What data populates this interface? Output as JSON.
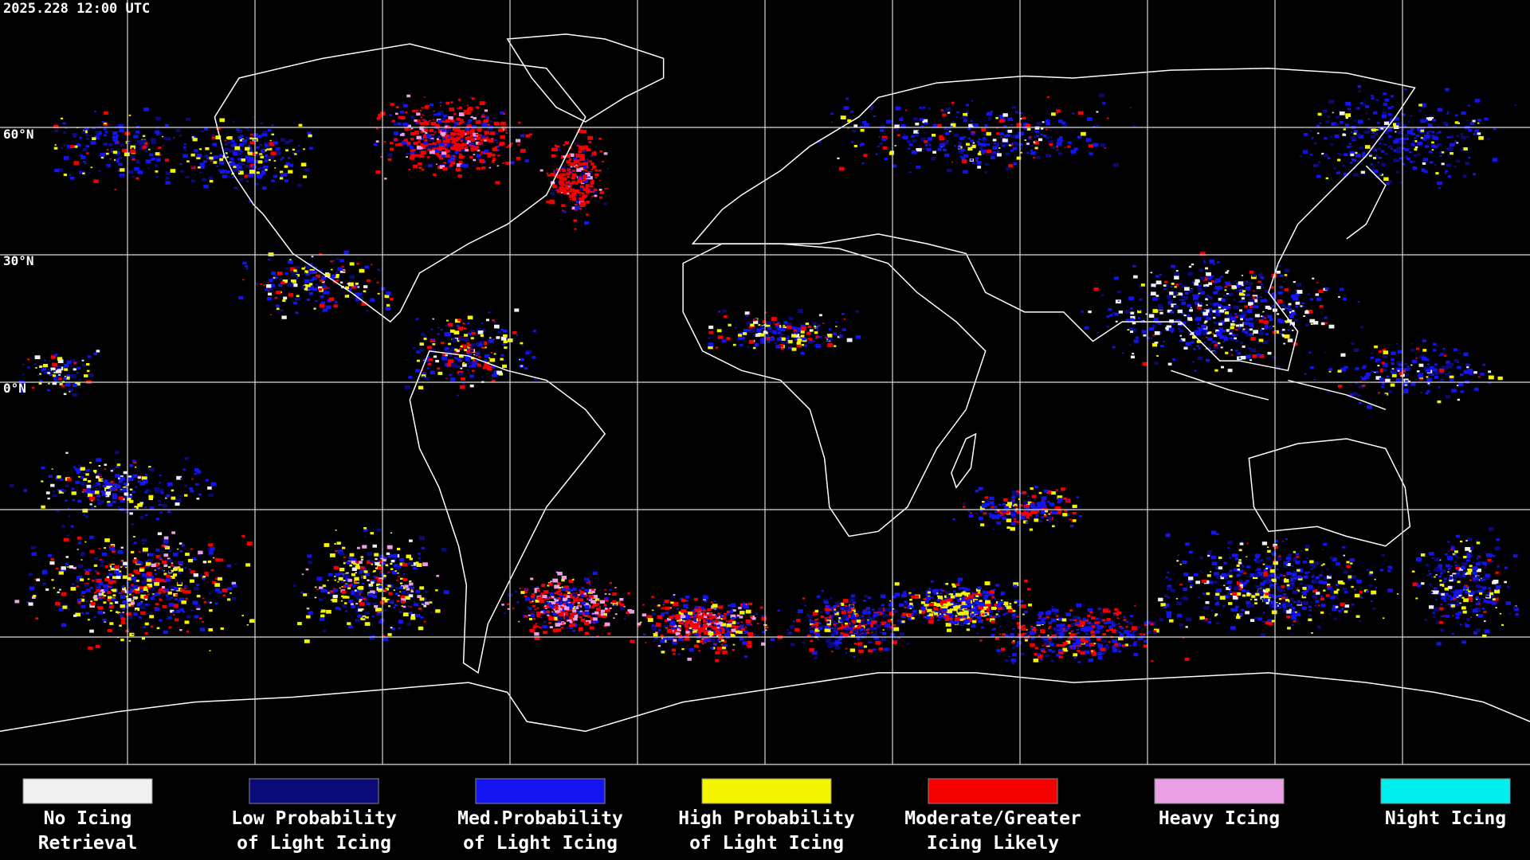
{
  "header": {
    "timestamp": "2025.228 12:00 UTC"
  },
  "map": {
    "lat_labels": [
      "60°N",
      "30°N",
      "0°N"
    ]
  },
  "legend": [
    {
      "color": "#f0f0f0",
      "lines": [
        "No Icing",
        "Retrieval"
      ]
    },
    {
      "color": "#0a0a78",
      "lines": [
        "Low Probability",
        "of Light Icing"
      ]
    },
    {
      "color": "#1414f0",
      "lines": [
        "Med.Probability",
        "of Light Icing"
      ]
    },
    {
      "color": "#f5f500",
      "lines": [
        "High Probability",
        "of Light Icing"
      ]
    },
    {
      "color": "#f50000",
      "lines": [
        "Moderate/Greater",
        "Icing Likely"
      ]
    },
    {
      "color": "#eba0e6",
      "lines": [
        "Heavy Icing"
      ]
    },
    {
      "color": "#00f0f0",
      "lines": [
        "Night Icing"
      ]
    }
  ]
}
